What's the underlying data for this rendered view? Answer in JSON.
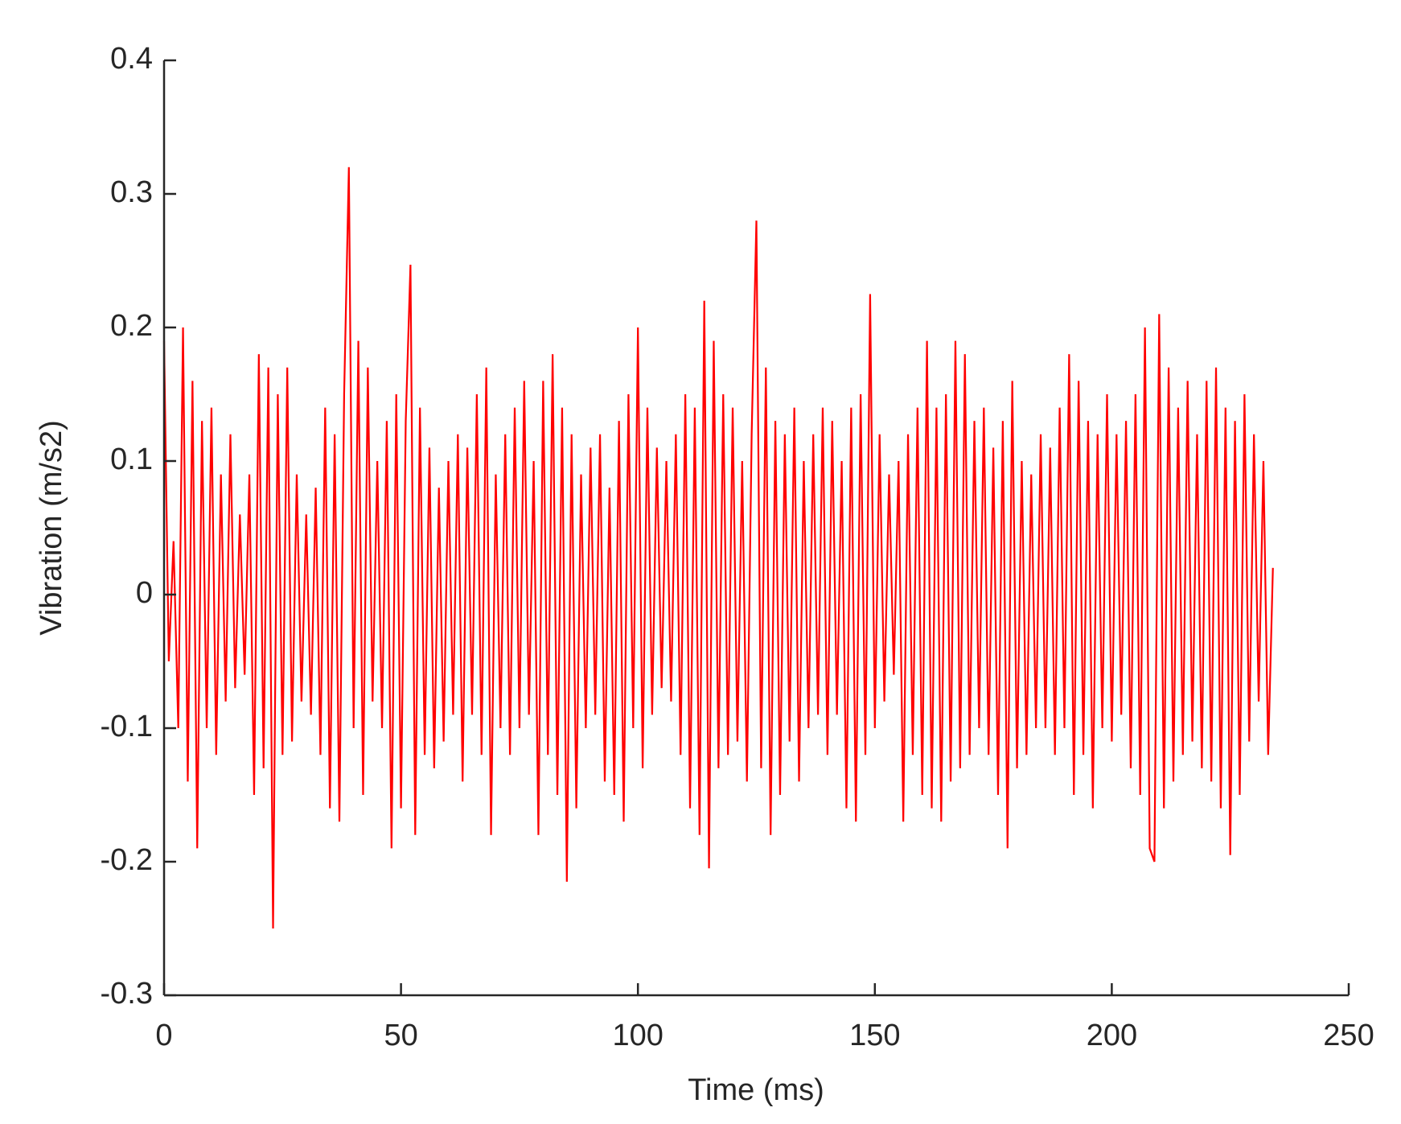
{
  "chart_data": {
    "type": "line",
    "xlabel": "Time (ms)",
    "ylabel": "Vibration (m/s2)",
    "xlim": [
      0,
      250
    ],
    "ylim": [
      -0.3,
      0.4
    ],
    "xticks": [
      0,
      50,
      100,
      150,
      200,
      250
    ],
    "yticks": [
      -0.3,
      -0.2,
      -0.1,
      0,
      0.1,
      0.2,
      0.3,
      0.4
    ],
    "grid": false,
    "x": [
      0,
      1,
      2,
      3,
      4,
      5,
      6,
      7,
      8,
      9,
      10,
      11,
      12,
      13,
      14,
      15,
      16,
      17,
      18,
      19,
      20,
      21,
      22,
      23,
      24,
      25,
      26,
      27,
      28,
      29,
      30,
      31,
      32,
      33,
      34,
      35,
      36,
      37,
      38,
      39,
      40,
      41,
      42,
      43,
      44,
      45,
      46,
      47,
      48,
      49,
      50,
      51,
      52,
      53,
      54,
      55,
      56,
      57,
      58,
      59,
      60,
      61,
      62,
      63,
      64,
      65,
      66,
      67,
      68,
      69,
      70,
      71,
      72,
      73,
      74,
      75,
      76,
      77,
      78,
      79,
      80,
      81,
      82,
      83,
      84,
      85,
      86,
      87,
      88,
      89,
      90,
      91,
      92,
      93,
      94,
      95,
      96,
      97,
      98,
      99,
      100,
      101,
      102,
      103,
      104,
      105,
      106,
      107,
      108,
      109,
      110,
      111,
      112,
      113,
      114,
      115,
      116,
      117,
      118,
      119,
      120,
      121,
      122,
      123,
      124,
      125,
      126,
      127,
      128,
      129,
      130,
      131,
      132,
      133,
      134,
      135,
      136,
      137,
      138,
      139,
      140,
      141,
      142,
      143,
      144,
      145,
      146,
      147,
      148,
      149,
      150,
      151,
      152,
      153,
      154,
      155,
      156,
      157,
      158,
      159,
      160,
      161,
      162,
      163,
      164,
      165,
      166,
      167,
      168,
      169,
      170,
      171,
      172,
      173,
      174,
      175,
      176,
      177,
      178,
      179,
      180,
      181,
      182,
      183,
      184,
      185,
      186,
      187,
      188,
      189,
      190,
      191,
      192,
      193,
      194,
      195,
      196,
      197,
      198,
      199,
      200,
      201,
      202,
      203,
      204,
      205,
      206,
      207,
      208,
      209,
      210,
      211,
      212,
      213,
      214,
      215,
      216,
      217,
      218,
      219,
      220,
      221,
      222,
      223,
      224,
      225,
      226,
      227,
      228,
      229,
      230,
      231,
      232,
      233,
      234
    ],
    "series": [
      {
        "color": "#ff0000",
        "values": [
          0.19,
          -0.05,
          0.04,
          -0.1,
          0.2,
          -0.14,
          0.16,
          -0.19,
          0.13,
          -0.1,
          0.14,
          -0.12,
          0.09,
          -0.08,
          0.12,
          -0.07,
          0.06,
          -0.06,
          0.09,
          -0.15,
          0.18,
          -0.13,
          0.17,
          -0.25,
          0.15,
          -0.12,
          0.17,
          -0.11,
          0.09,
          -0.08,
          0.06,
          -0.09,
          0.08,
          -0.12,
          0.14,
          -0.16,
          0.12,
          -0.17,
          0.15,
          0.32,
          -0.1,
          0.19,
          -0.15,
          0.17,
          -0.08,
          0.1,
          -0.1,
          0.13,
          -0.19,
          0.15,
          -0.16,
          0.13,
          0.247,
          -0.18,
          0.14,
          -0.12,
          0.11,
          -0.13,
          0.08,
          -0.11,
          0.1,
          -0.09,
          0.12,
          -0.14,
          0.11,
          -0.09,
          0.15,
          -0.12,
          0.17,
          -0.18,
          0.09,
          -0.1,
          0.12,
          -0.12,
          0.14,
          -0.1,
          0.16,
          -0.09,
          0.1,
          -0.18,
          0.16,
          -0.12,
          0.18,
          -0.15,
          0.14,
          -0.215,
          0.12,
          -0.16,
          0.09,
          -0.1,
          0.11,
          -0.09,
          0.12,
          -0.14,
          0.08,
          -0.15,
          0.13,
          -0.17,
          0.15,
          -0.1,
          0.2,
          -0.13,
          0.14,
          -0.09,
          0.11,
          -0.07,
          0.1,
          -0.08,
          0.12,
          -0.12,
          0.15,
          -0.16,
          0.14,
          -0.18,
          0.22,
          -0.205,
          0.19,
          -0.13,
          0.15,
          -0.12,
          0.14,
          -0.11,
          0.1,
          -0.14,
          0.12,
          0.28,
          -0.13,
          0.17,
          -0.18,
          0.13,
          -0.15,
          0.12,
          -0.11,
          0.14,
          -0.14,
          0.1,
          -0.1,
          0.12,
          -0.09,
          0.14,
          -0.12,
          0.13,
          -0.09,
          0.1,
          -0.16,
          0.14,
          -0.17,
          0.15,
          -0.12,
          0.225,
          -0.1,
          0.12,
          -0.08,
          0.09,
          -0.06,
          0.1,
          -0.17,
          0.12,
          -0.12,
          0.14,
          -0.15,
          0.19,
          -0.16,
          0.14,
          -0.17,
          0.15,
          -0.14,
          0.19,
          -0.13,
          0.18,
          -0.12,
          0.13,
          -0.1,
          0.14,
          -0.12,
          0.11,
          -0.15,
          0.13,
          -0.19,
          0.16,
          -0.13,
          0.1,
          -0.12,
          0.09,
          -0.1,
          0.12,
          -0.1,
          0.11,
          -0.12,
          0.14,
          -0.1,
          0.18,
          -0.15,
          0.16,
          -0.12,
          0.13,
          -0.16,
          0.12,
          -0.1,
          0.15,
          -0.11,
          0.12,
          -0.09,
          0.13,
          -0.13,
          0.15,
          -0.15,
          0.2,
          -0.19,
          -0.2,
          0.21,
          -0.16,
          0.17,
          -0.14,
          0.14,
          -0.12,
          0.16,
          -0.11,
          0.12,
          -0.13,
          0.16,
          -0.14,
          0.17,
          -0.16,
          0.14,
          -0.195,
          0.13,
          -0.15,
          0.15,
          -0.11,
          0.12,
          -0.08,
          0.1,
          -0.12,
          0.02
        ]
      }
    ]
  }
}
